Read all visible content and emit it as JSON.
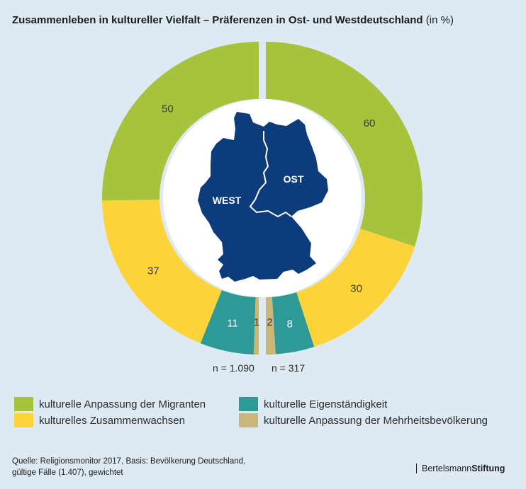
{
  "title": {
    "main": "Zusammenleben in kultureller Vielfalt – Präferenzen in Ost- und Westdeutschland",
    "unit": "(in %)"
  },
  "colors": {
    "background": "#dde9f3",
    "anpassung_migranten": "#a6c33b",
    "zusammenwachsen": "#fdd33a",
    "eigenstaendigkeit": "#2e9a98",
    "anpassung_mehrheit": "#c9b679",
    "map": "#0d3c7d"
  },
  "chart_data": {
    "type": "pie",
    "series": [
      {
        "name": "WEST",
        "n": "n = 1.090",
        "values": [
          50,
          37,
          11,
          1
        ]
      },
      {
        "name": "OST",
        "n": "n = 317",
        "values": [
          60,
          30,
          8,
          2
        ]
      }
    ],
    "categories": [
      "kulturelle Anpassung der Migranten",
      "kulturelles Zusammenwachsen",
      "kulturelle Eigenständigkeit",
      "kulturelle Anpassung der Mehrheitsbevölkerung"
    ],
    "legend_position": "bottom"
  },
  "legend": [
    {
      "label": "kulturelle Anpassung der Migranten",
      "color": "#a6c33b"
    },
    {
      "label": "kulturelle Eigenständigkeit",
      "color": "#2e9a98"
    },
    {
      "label": "kulturelles Zusammenwachsen",
      "color": "#fdd33a"
    },
    {
      "label": "kulturelle Anpassung der Mehrheitsbevölkerung",
      "color": "#c9b679"
    }
  ],
  "map_labels": {
    "west": "WEST",
    "ost": "OST"
  },
  "source": {
    "line1": "Quelle: Religionsmonitor 2017, Basis: Bevölkerung Deutschland,",
    "line2": "gültige Fälle (1.407), gewichtet"
  },
  "brand": {
    "part1": "Bertelsmann",
    "part2": "Stiftung"
  }
}
